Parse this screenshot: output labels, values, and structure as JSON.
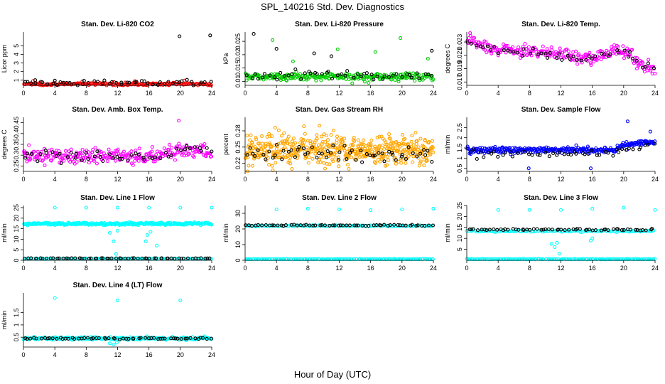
{
  "title": "SPL_140216  Std. Dev. Diagnostics",
  "xlabel": "Hour of Day (UTC)",
  "colors": {
    "black": "#000000",
    "red": "#ff0000",
    "green": "#00cc00",
    "magenta": "#ff00ff",
    "orange": "#ffa500",
    "blue": "#0000ff",
    "cyan": "#00ffff"
  },
  "chart_data": [
    {
      "type": "scatter",
      "title": "Stan. Dev. Li-820 CO2",
      "ylabel": "Licor ppm",
      "xlim": [
        0,
        24
      ],
      "ylim": [
        0.4,
        6.6
      ],
      "xticks": [
        0,
        4,
        8,
        12,
        16,
        20,
        24
      ],
      "yticks": [
        1,
        2,
        3,
        4,
        5
      ],
      "series": [
        {
          "color": "#ff0000",
          "base": 0.55,
          "spread": 0.12,
          "n": 200,
          "outliers": [
            [
              1.2,
              0.9
            ],
            [
              7.5,
              0.85
            ],
            [
              14.2,
              0.9
            ],
            [
              20.5,
              0.95
            ]
          ]
        },
        {
          "color": "#000000",
          "base": 0.7,
          "spread": 0.25,
          "n": 50,
          "outliers": [
            [
              19.9,
              6.1
            ],
            [
              23.8,
              6.2
            ],
            [
              1.5,
              1.0
            ],
            [
              4.0,
              0.95
            ]
          ]
        }
      ]
    },
    {
      "type": "scatter",
      "title": "Stan. Dev. Li-820 Pressure",
      "ylabel": "kPa",
      "xlim": [
        0,
        24
      ],
      "ylim": [
        0.0085,
        0.0285
      ],
      "xticks": [
        0,
        4,
        8,
        12,
        16,
        20,
        24
      ],
      "yticks": [
        0.01,
        0.015,
        0.02,
        0.025
      ],
      "series": [
        {
          "color": "#00cc00",
          "base": 0.0118,
          "spread": 0.0012,
          "n": 260,
          "outliers": [
            [
              3.5,
              0.0255
            ],
            [
              11.8,
              0.022
            ],
            [
              16.6,
              0.021
            ],
            [
              19.8,
              0.0262
            ],
            [
              23.3,
              0.0185
            ],
            [
              6.1,
              0.0175
            ]
          ]
        },
        {
          "color": "#000000",
          "base": 0.0123,
          "spread": 0.0015,
          "n": 50,
          "outliers": [
            [
              1.1,
              0.0278
            ],
            [
              4.0,
              0.0222
            ],
            [
              8.8,
              0.0205
            ],
            [
              11.0,
              0.0194
            ],
            [
              23.8,
              0.0215
            ]
          ]
        }
      ]
    },
    {
      "type": "scatter",
      "title": "Stan. Dev. Li-820 Temp.",
      "ylabel": "degrees C",
      "xlim": [
        0,
        24
      ],
      "ylim": [
        0.0165,
        0.0245
      ],
      "xticks": [
        0,
        4,
        8,
        12,
        16,
        20,
        24
      ],
      "yticks": [
        0.017,
        0.019,
        0.021,
        0.023
      ],
      "series": [
        {
          "color": "#ff00ff",
          "trend": [
            [
              0,
              0.0235
            ],
            [
              4,
              0.0218
            ],
            [
              8,
              0.0217
            ],
            [
              12,
              0.0211
            ],
            [
              16,
              0.0205
            ],
            [
              19,
              0.0218
            ],
            [
              21,
              0.0212
            ],
            [
              22,
              0.0195
            ],
            [
              24,
              0.0188
            ]
          ],
          "spread": 0.0008,
          "n": 260
        },
        {
          "color": "#000000",
          "trend": [
            [
              0,
              0.023
            ],
            [
              4,
              0.0216
            ],
            [
              8,
              0.0215
            ],
            [
              12,
              0.021
            ],
            [
              16,
              0.0205
            ],
            [
              19,
              0.0217
            ],
            [
              21,
              0.021
            ],
            [
              22,
              0.0196
            ],
            [
              24,
              0.0192
            ]
          ],
          "spread": 0.0005,
          "n": 50
        }
      ]
    },
    {
      "type": "scatter",
      "title": "Stan. Dev. Amb. Box Temp.",
      "ylabel": "degrees C",
      "xlim": [
        0,
        24
      ],
      "ylim": [
        0.225,
        0.475
      ],
      "xticks": [
        0,
        4,
        8,
        12,
        16,
        20,
        24
      ],
      "yticks": [
        0.25,
        0.3,
        0.35,
        0.4,
        0.45
      ],
      "series": [
        {
          "color": "#ff00ff",
          "trend": [
            [
              0,
              0.3
            ],
            [
              10,
              0.295
            ],
            [
              18,
              0.3
            ],
            [
              20,
              0.33
            ],
            [
              24,
              0.31
            ]
          ],
          "spread": 0.03,
          "n": 280,
          "outliers": [
            [
              19.8,
              0.46
            ]
          ]
        },
        {
          "color": "#000000",
          "trend": [
            [
              0,
              0.3
            ],
            [
              10,
              0.295
            ],
            [
              18,
              0.3
            ],
            [
              20,
              0.33
            ],
            [
              24,
              0.31
            ]
          ],
          "spread": 0.025,
          "n": 50
        }
      ]
    },
    {
      "type": "scatter",
      "title": "Stan. Dev. Gas Stream RH",
      "ylabel": "percent",
      "xlim": [
        0,
        24
      ],
      "ylim": [
        0.205,
        0.305
      ],
      "xticks": [
        0,
        4,
        8,
        12,
        16,
        20,
        24
      ],
      "yticks": [
        0.22,
        0.25,
        0.28
      ],
      "series": [
        {
          "color": "#ffa500",
          "base": 0.245,
          "spread": 0.022,
          "n": 520
        },
        {
          "color": "#000000",
          "base": 0.238,
          "spread": 0.014,
          "n": 60
        }
      ]
    },
    {
      "type": "scatter",
      "title": "Stan. Dev. Sample Flow",
      "ylabel": "ml/min",
      "xlim": [
        0,
        24
      ],
      "ylim": [
        0.35,
        3.0
      ],
      "xticks": [
        0,
        4,
        8,
        12,
        16,
        20,
        24
      ],
      "yticks": [
        0.5,
        1.0,
        1.5,
        2.0,
        2.5
      ],
      "series": [
        {
          "color": "#0000ff",
          "trend": [
            [
              0,
              1.4
            ],
            [
              19,
              1.4
            ],
            [
              20,
              1.65
            ],
            [
              24,
              1.8
            ]
          ],
          "spread": 0.12,
          "n": 320,
          "outliers": [
            [
              7.9,
              0.5
            ],
            [
              15.8,
              0.5
            ],
            [
              20.5,
              2.8
            ],
            [
              23.4,
              2.3
            ]
          ]
        },
        {
          "color": "#000000",
          "trend": [
            [
              0,
              1.2
            ],
            [
              19,
              1.2
            ],
            [
              20,
              1.45
            ],
            [
              24,
              1.6
            ]
          ],
          "spread": 0.15,
          "n": 50
        }
      ]
    },
    {
      "type": "scatter",
      "title": "Stan. Dev. Line 1 Flow",
      "ylabel": "ml/min",
      "xlim": [
        0,
        24
      ],
      "ylim": [
        0,
        26
      ],
      "xticks": [
        0,
        4,
        8,
        12,
        16,
        20,
        24
      ],
      "yticks": [
        0,
        5,
        10,
        15,
        20,
        25
      ],
      "series": [
        {
          "color": "#00ffff",
          "base": 17.3,
          "spread": 0.5,
          "n": 300,
          "outliers": [
            [
              4.0,
              25
            ],
            [
              8.0,
              25
            ],
            [
              12.0,
              25
            ],
            [
              16.0,
              25
            ],
            [
              20.0,
              25
            ],
            [
              24.0,
              25
            ],
            [
              11.0,
              13
            ],
            [
              11.5,
              9
            ],
            [
              11.8,
              3
            ],
            [
              12.0,
              14
            ],
            [
              15.6,
              9
            ],
            [
              15.8,
              12
            ],
            [
              16.2,
              13.5
            ],
            [
              17.0,
              7
            ]
          ]
        },
        {
          "color": "#00ffff",
          "base": 0.7,
          "spread": 0.1,
          "n": 120
        },
        {
          "color": "#000000",
          "base": 0.9,
          "spread": 0.1,
          "n": 60
        }
      ]
    },
    {
      "type": "scatter",
      "title": "Stan. Dev. Line 2 Flow",
      "ylabel": "ml/min",
      "xlim": [
        0,
        24
      ],
      "ylim": [
        0,
        35
      ],
      "xticks": [
        0,
        4,
        8,
        12,
        16,
        20,
        24
      ],
      "yticks": [
        0,
        10,
        20,
        30
      ],
      "series": [
        {
          "color": "#00ffff",
          "base": 22.0,
          "spread": 0.3,
          "n": 120,
          "outliers": [
            [
              4.0,
              32.5
            ],
            [
              8.0,
              33
            ],
            [
              12.0,
              32.5
            ],
            [
              16.0,
              32
            ],
            [
              20.0,
              32.5
            ],
            [
              24.0,
              33
            ]
          ]
        },
        {
          "color": "#00ffff",
          "base": 0.7,
          "spread": 0.1,
          "n": 140
        },
        {
          "color": "#000000",
          "base": 22.3,
          "spread": 0.3,
          "n": 60
        }
      ]
    },
    {
      "type": "scatter",
      "title": "Stan. Dev. Line 3 Flow",
      "ylabel": "ml/min",
      "xlim": [
        0,
        24
      ],
      "ylim": [
        0,
        25
      ],
      "xticks": [
        0,
        4,
        8,
        12,
        16,
        20,
        24
      ],
      "yticks": [
        5,
        10,
        15,
        20,
        25
      ],
      "series": [
        {
          "color": "#00ffff",
          "base": 13.3,
          "spread": 0.3,
          "n": 120,
          "outliers": [
            [
              4.0,
              23
            ],
            [
              8.0,
              23
            ],
            [
              12.0,
              23
            ],
            [
              16.0,
              23.5
            ],
            [
              20.0,
              24
            ],
            [
              24.0,
              23
            ],
            [
              10.8,
              7.5
            ],
            [
              11.2,
              6
            ],
            [
              11.5,
              8
            ],
            [
              15.8,
              9
            ],
            [
              16.0,
              10
            ],
            [
              11.8,
              3
            ]
          ]
        },
        {
          "color": "#00ffff",
          "base": 0.5,
          "spread": 0.1,
          "n": 140
        },
        {
          "color": "#000000",
          "base": 14.0,
          "spread": 0.3,
          "n": 60
        }
      ]
    },
    {
      "type": "scatter",
      "title": "Stan. Dev. Line 4 (LT) Flow",
      "ylabel": "ml/min",
      "xlim": [
        0,
        24
      ],
      "ylim": [
        0.1,
        2.3
      ],
      "xticks": [
        0,
        4,
        8,
        12,
        16,
        20,
        24
      ],
      "yticks": [
        0.5,
        1.0,
        1.5
      ],
      "series": [
        {
          "color": "#00ffff",
          "base": 0.45,
          "spread": 0.05,
          "n": 220,
          "outliers": [
            [
              4.0,
              2.1
            ],
            [
              12.0,
              2.0
            ],
            [
              20.0,
              2.0
            ],
            [
              11.0,
              0.25
            ],
            [
              11.5,
              0.2
            ],
            [
              11.9,
              0.28
            ]
          ]
        },
        {
          "color": "#000000",
          "base": 0.45,
          "spread": 0.03,
          "n": 60
        }
      ]
    }
  ]
}
